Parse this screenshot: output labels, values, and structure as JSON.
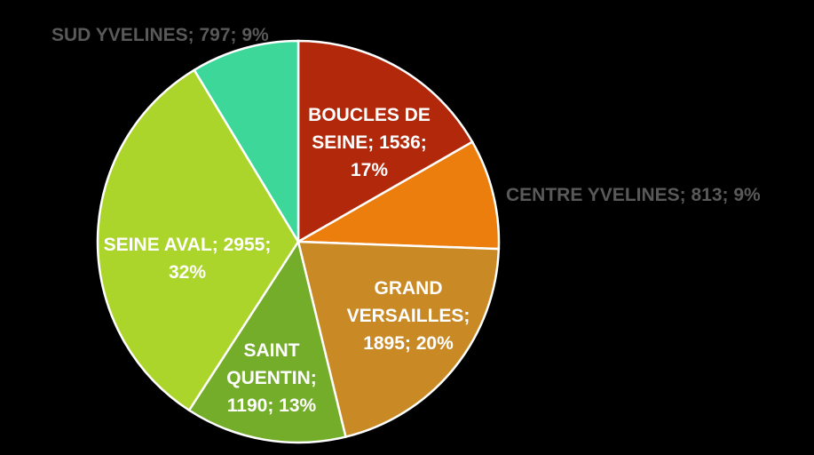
{
  "chart_data": {
    "type": "pie",
    "title": "",
    "slices": [
      {
        "name": "BOUCLES DE SEINE",
        "value": 1536,
        "percent": "17%",
        "color": "#b1290a",
        "label_lines": [
          "BOUCLES DE",
          "SEINE; 1536;",
          "17%"
        ]
      },
      {
        "name": "CENTRE YVELINES",
        "value": 813,
        "percent": "9%",
        "color": "#ec7e0e",
        "label_lines": [
          "CENTRE YVELINES; 813; 9%"
        ]
      },
      {
        "name": "GRAND VERSAILLES",
        "value": 1895,
        "percent": "20%",
        "color": "#c98a26",
        "label_lines": [
          "GRAND",
          "VERSAILLES;",
          "1895; 20%"
        ]
      },
      {
        "name": "SAINT QUENTIN",
        "value": 1190,
        "percent": "13%",
        "color": "#74ad2a",
        "label_lines": [
          "SAINT",
          "QUENTIN;",
          "1190; 13%"
        ]
      },
      {
        "name": "SEINE AVAL",
        "value": 2955,
        "percent": "32%",
        "color": "#acd52b",
        "label_lines": [
          "SEINE AVAL; 2955;",
          "32%"
        ]
      },
      {
        "name": "SUD YVELINES",
        "value": 797,
        "percent": "9%",
        "color": "#3dd79a",
        "label_lines": [
          "SUD YVELINES; 797; 9%"
        ]
      }
    ]
  }
}
